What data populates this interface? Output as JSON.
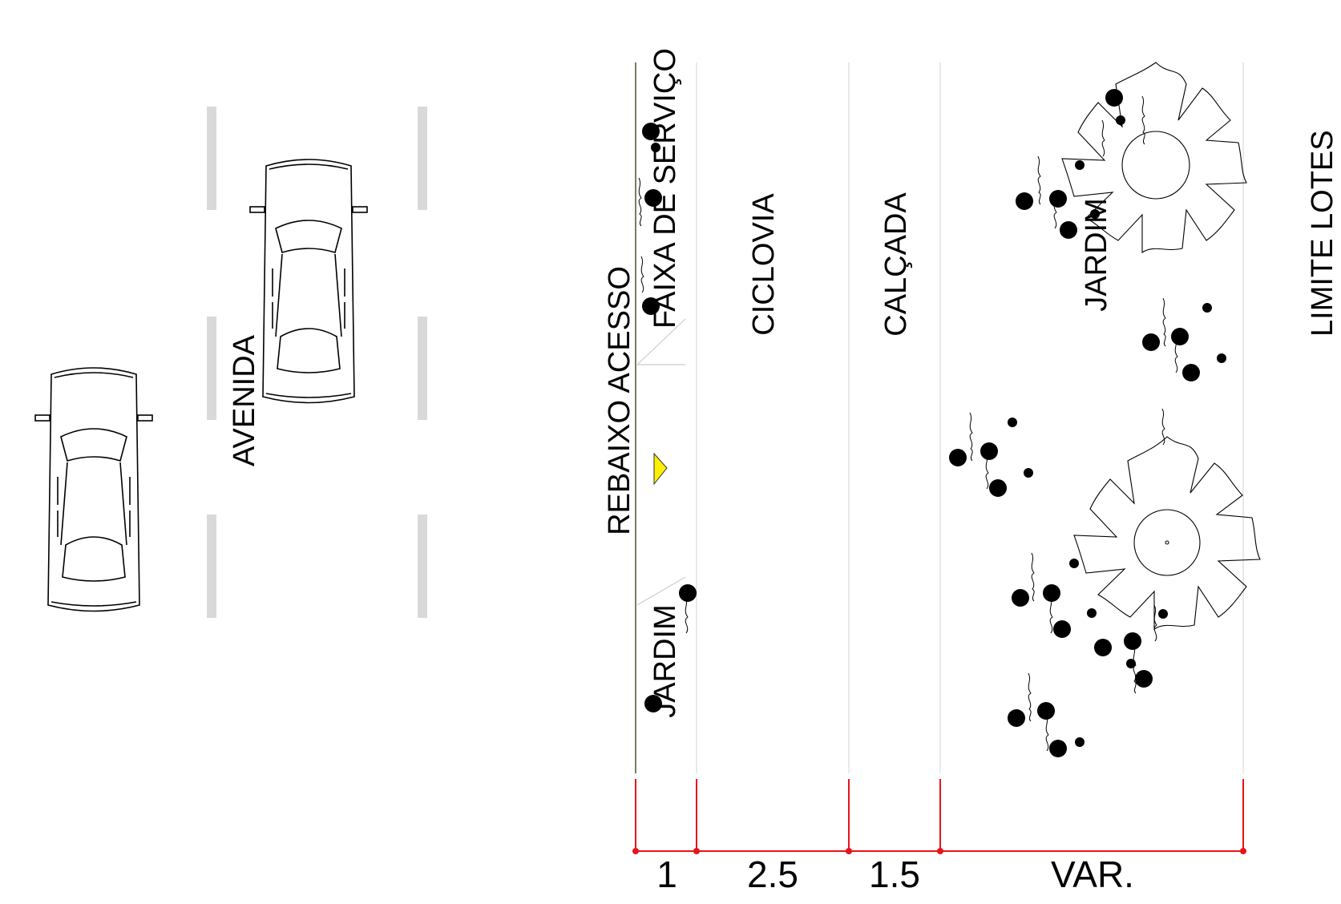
{
  "labels": {
    "avenue": "AVENIDA",
    "access_ramp": "REBAIXO ACESSO",
    "service_strip": "FAIXA DE SERVIÇO",
    "bike_lane": "CICLOVIA",
    "sidewalk": "CALÇADA",
    "garden_small": "JARDIM",
    "garden_large": "JARDIM",
    "lot_limit": "LIMITE LOTES"
  },
  "dimensions": {
    "segments": [
      "1",
      "2.5",
      "1.5",
      "VAR."
    ]
  },
  "colors": {
    "dimension_line": "#e8141b",
    "lane_marking": "#d9d9d9",
    "zone_divider": "#dddddd",
    "curb_line": "#5a5a3a",
    "ramp_marker": "#ffee00"
  }
}
